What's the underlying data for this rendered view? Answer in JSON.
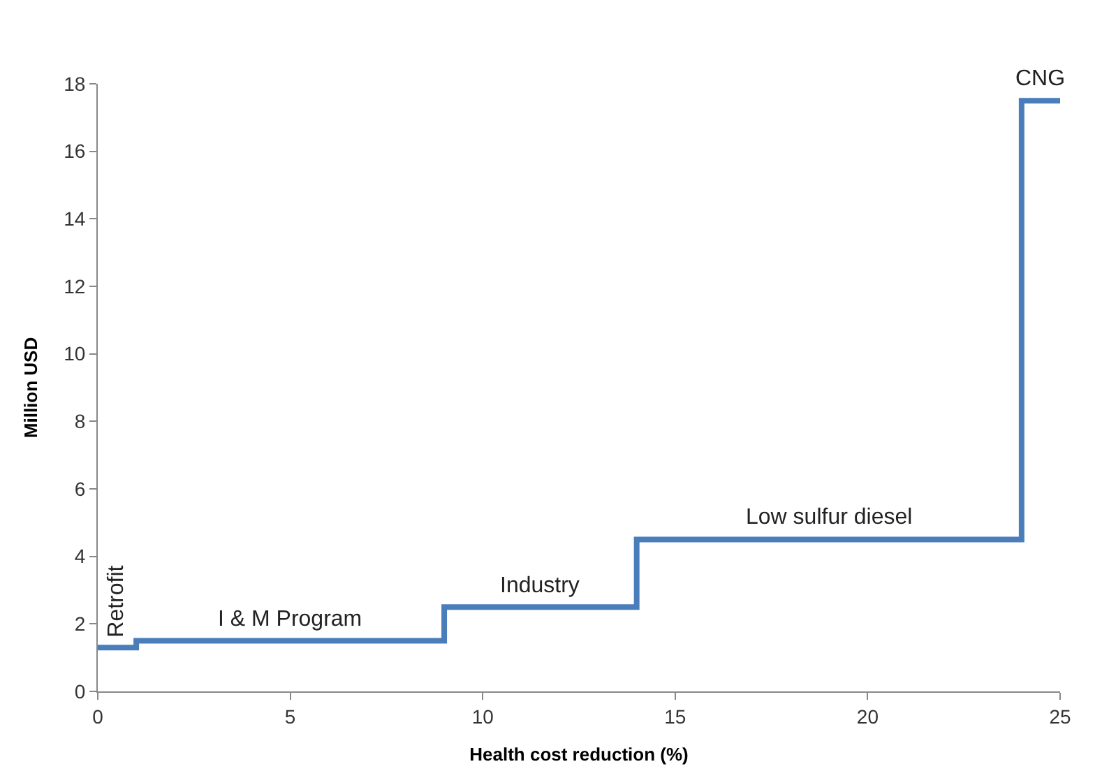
{
  "chart_data": {
    "type": "step",
    "xlabel": "Health cost reduction (%)",
    "ylabel": "Million USD",
    "x": [
      0,
      1,
      9,
      14,
      24,
      25
    ],
    "series": [
      {
        "color": "#4a7ebb",
        "values": [
          1.3,
          1.5,
          2.5,
          4.5,
          17.5,
          17.5
        ]
      }
    ],
    "xlim": [
      0,
      25
    ],
    "xticks": [
      0,
      5,
      10,
      15,
      20,
      25
    ],
    "ylim": [
      0,
      18
    ],
    "yticks": [
      0,
      2,
      4,
      6,
      8,
      10,
      12,
      14,
      16,
      18
    ],
    "marker": "none",
    "line_style": "solid",
    "annotations": [
      "Retrofit",
      "I & M Program",
      "Industry",
      "Low sulfur diesel",
      "CNG"
    ]
  }
}
